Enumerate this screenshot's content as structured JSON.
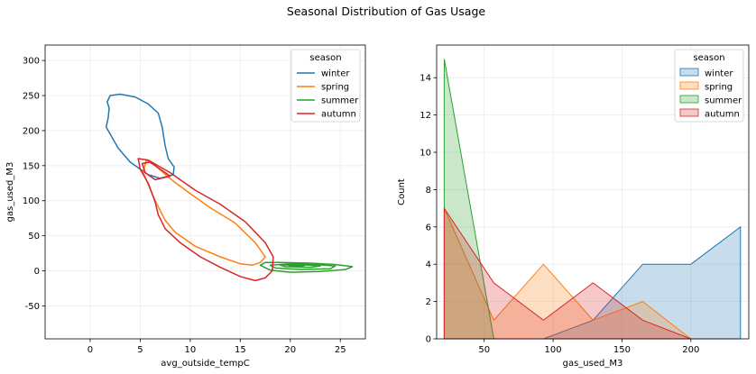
{
  "figure_title": "Seasonal Distribution of Gas Usage",
  "colors": {
    "winter": "#1f77b4",
    "spring": "#ff7f0e",
    "summer": "#2ca02c",
    "autumn": "#d62728",
    "grid": "#ebebeb"
  },
  "chart_data": [
    {
      "type": "kde-contour",
      "xlabel": "avg_outside_tempC",
      "ylabel": "gas_used_M3",
      "xlim": [
        -4.5,
        27.5
      ],
      "ylim": [
        -97,
        322
      ],
      "xticks": [
        0,
        5,
        10,
        15,
        20,
        25
      ],
      "yticks": [
        -50,
        0,
        50,
        100,
        150,
        200,
        250,
        300
      ],
      "grid": true,
      "legend": {
        "title": "season",
        "placement": "top-right",
        "entries": [
          "winter",
          "spring",
          "summer",
          "autumn"
        ]
      },
      "series": [
        {
          "name": "winter",
          "contours": [
            [
              [
                2.0,
                250
              ],
              [
                3.0,
                252
              ],
              [
                4.5,
                248
              ],
              [
                5.8,
                238
              ],
              [
                6.8,
                225
              ],
              [
                7.2,
                205
              ],
              [
                7.5,
                178
              ],
              [
                7.8,
                160
              ],
              [
                8.4,
                148
              ],
              [
                8.3,
                137
              ],
              [
                7.0,
                132
              ],
              [
                5.8,
                137
              ],
              [
                4.0,
                155
              ],
              [
                2.8,
                175
              ],
              [
                1.6,
                205
              ],
              [
                1.8,
                218
              ],
              [
                1.9,
                232
              ],
              [
                1.7,
                241
              ],
              [
                2.0,
                250
              ]
            ]
          ]
        },
        {
          "name": "spring",
          "contours": [
            [
              [
                5.6,
                158
              ],
              [
                6.5,
                150
              ],
              [
                8.3,
                128
              ],
              [
                10.0,
                110
              ],
              [
                12.0,
                90
              ],
              [
                14.5,
                68
              ],
              [
                16.5,
                40
              ],
              [
                17.5,
                20
              ],
              [
                17.0,
                12
              ],
              [
                16.2,
                8
              ],
              [
                15.0,
                10
              ],
              [
                13.0,
                20
              ],
              [
                10.5,
                35
              ],
              [
                8.5,
                55
              ],
              [
                7.5,
                72
              ],
              [
                6.5,
                100
              ],
              [
                5.3,
                140
              ],
              [
                5.6,
                158
              ]
            ]
          ]
        },
        {
          "name": "summer",
          "contours": [
            [
              [
                17.0,
                8
              ],
              [
                17.5,
                12
              ],
              [
                19.0,
                12
              ],
              [
                22.0,
                11
              ],
              [
                24.5,
                9
              ],
              [
                26.2,
                6
              ],
              [
                25.5,
                2
              ],
              [
                23.0,
                -1
              ],
              [
                20.0,
                -2
              ],
              [
                18.0,
                1
              ],
              [
                17.0,
                8
              ]
            ],
            [
              [
                18.0,
                8
              ],
              [
                20.0,
                10
              ],
              [
                22.5,
                9
              ],
              [
                24.5,
                7
              ],
              [
                24.0,
                3
              ],
              [
                21.0,
                2
              ],
              [
                18.5,
                4
              ],
              [
                18.0,
                8
              ]
            ],
            [
              [
                19.0,
                8
              ],
              [
                21.0,
                9
              ],
              [
                23.0,
                7
              ],
              [
                22.0,
                5
              ],
              [
                19.5,
                6
              ],
              [
                19.0,
                8
              ]
            ],
            [
              [
                19.8,
                8
              ],
              [
                21.5,
                8
              ],
              [
                21.0,
                6.5
              ],
              [
                20.0,
                7
              ],
              [
                19.8,
                8
              ]
            ]
          ]
        },
        {
          "name": "autumn",
          "contours": [
            [
              [
                4.8,
                160
              ],
              [
                5.8,
                158
              ],
              [
                8.0,
                140
              ],
              [
                10.5,
                115
              ],
              [
                13.0,
                95
              ],
              [
                15.5,
                70
              ],
              [
                17.5,
                40
              ],
              [
                18.3,
                20
              ],
              [
                18.2,
                0
              ],
              [
                17.5,
                -10
              ],
              [
                16.5,
                -14
              ],
              [
                15.0,
                -8
              ],
              [
                13.0,
                5
              ],
              [
                11.0,
                20
              ],
              [
                9.0,
                40
              ],
              [
                7.5,
                60
              ],
              [
                6.8,
                80
              ],
              [
                6.5,
                98
              ],
              [
                5.8,
                125
              ],
              [
                5.0,
                145
              ],
              [
                4.8,
                160
              ]
            ],
            [
              [
                5.2,
                153
              ],
              [
                6.0,
                155
              ],
              [
                8.0,
                135
              ],
              [
                6.5,
                130
              ],
              [
                5.5,
                140
              ],
              [
                5.2,
                153
              ]
            ]
          ]
        }
      ]
    },
    {
      "type": "area",
      "xlabel": "gas_used_M3",
      "ylabel": "Count",
      "xlim": [
        15.5,
        242
      ],
      "ylim": [
        0,
        15.75
      ],
      "xticks": [
        50,
        100,
        150,
        200
      ],
      "yticks": [
        0,
        2,
        4,
        6,
        8,
        10,
        12,
        14
      ],
      "grid": true,
      "legend": {
        "title": "season",
        "placement": "top-right",
        "entries": [
          "winter",
          "spring",
          "summer",
          "autumn"
        ]
      },
      "series": [
        {
          "name": "winter",
          "x": [
            93,
            129,
            165,
            200,
            236
          ],
          "values": [
            0,
            1,
            4,
            4,
            6
          ]
        },
        {
          "name": "spring",
          "x": [
            21,
            57,
            93,
            129,
            165,
            200
          ],
          "values": [
            7,
            1,
            4,
            1,
            2,
            0
          ]
        },
        {
          "name": "summer",
          "x": [
            21,
            57
          ],
          "values": [
            15,
            0
          ]
        },
        {
          "name": "autumn",
          "x": [
            21,
            57,
            93,
            129,
            165,
            200
          ],
          "values": [
            7,
            3,
            1,
            3,
            1,
            0
          ]
        }
      ]
    }
  ]
}
